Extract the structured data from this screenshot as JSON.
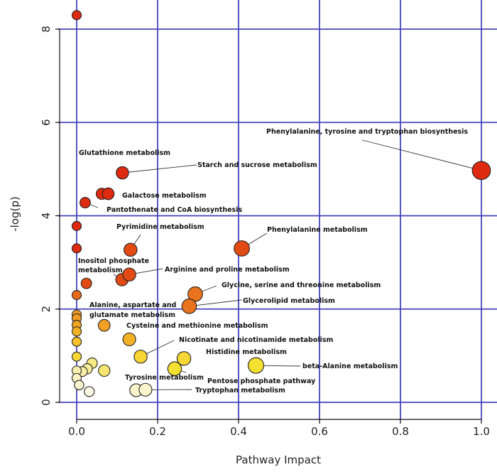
{
  "chart_data": {
    "type": "scatter",
    "xlabel": "Pathway Impact",
    "ylabel": "-log(p)",
    "xlim": [
      -0.04,
      1.04
    ],
    "ylim": [
      -0.3,
      8.5
    ],
    "x_ticks": [
      0.0,
      0.2,
      0.4,
      0.6,
      0.8,
      1.0
    ],
    "x_tick_labels": [
      "0.0",
      "0.2",
      "0.4",
      "0.6",
      "0.8",
      "1.0"
    ],
    "y_ticks": [
      0,
      2,
      4,
      6,
      8
    ],
    "y_tick_labels": [
      "0",
      "2",
      "4",
      "6",
      "8"
    ],
    "grid": true,
    "grid_color": "#4444bb",
    "point_outline_color": "#222222",
    "points": [
      {
        "x": 0.0,
        "y": 8.3,
        "color": "#dd2a10",
        "size": 0.3
      },
      {
        "x": 1.0,
        "y": 4.97,
        "color": "#dd2a10",
        "size": 1.0,
        "label": "Phenylalanine, tyrosine and tryptophan biosynthesis"
      },
      {
        "x": 0.113,
        "y": 4.92,
        "color": "#dd2a10",
        "size": 0.55,
        "label": "Starch and sucrose metabolism"
      },
      {
        "x": 0.062,
        "y": 4.47,
        "color": "#dd2a10",
        "size": 0.45,
        "label": "Glutathione metabolism"
      },
      {
        "x": 0.078,
        "y": 4.47,
        "color": "#dd2a10",
        "size": 0.5,
        "label": "Galactose metabolism"
      },
      {
        "x": 0.021,
        "y": 4.28,
        "color": "#dd2a10",
        "size": 0.4,
        "label": "Pantothenate and CoA biosynthesis"
      },
      {
        "x": 0.0,
        "y": 3.78,
        "color": "#dd2a10",
        "size": 0.3
      },
      {
        "x": 0.0,
        "y": 3.3,
        "color": "#dd2a10",
        "size": 0.3
      },
      {
        "x": 0.133,
        "y": 3.27,
        "color": "#e24a14",
        "size": 0.6,
        "label": "Pyrimidine metabolism"
      },
      {
        "x": 0.408,
        "y": 3.3,
        "color": "#e24a14",
        "size": 0.78,
        "label": "Phenylalanine metabolism"
      },
      {
        "x": 0.112,
        "y": 2.63,
        "color": "#e24a14",
        "size": 0.55,
        "label": "Inositol phosphate metabolism"
      },
      {
        "x": 0.13,
        "y": 2.74,
        "color": "#e24a14",
        "size": 0.6,
        "label": "Arginine and proline metabolism"
      },
      {
        "x": 0.024,
        "y": 2.55,
        "color": "#e24a14",
        "size": 0.4
      },
      {
        "x": 0.0,
        "y": 2.3,
        "color": "#e66a18",
        "size": 0.3
      },
      {
        "x": 0.293,
        "y": 2.32,
        "color": "#e8731c",
        "size": 0.72,
        "label": "Glycine, serine and threonine metabolism"
      },
      {
        "x": 0.278,
        "y": 2.06,
        "color": "#e8731c",
        "size": 0.72,
        "label": "Glycerolipid metabolism"
      },
      {
        "x": 0.0,
        "y": 1.88,
        "color": "#f09b24",
        "size": 0.3
      },
      {
        "x": 0.0,
        "y": 1.8,
        "color": "#f09b24",
        "size": 0.3
      },
      {
        "x": 0.0,
        "y": 1.66,
        "color": "#f0a624",
        "size": 0.3
      },
      {
        "x": 0.068,
        "y": 1.65,
        "color": "#f0a024",
        "size": 0.5,
        "label": "Alanine, aspartate and glutamate metabolism"
      },
      {
        "x": 0.0,
        "y": 1.52,
        "color": "#f2b228",
        "size": 0.3
      },
      {
        "x": 0.0,
        "y": 1.3,
        "color": "#f4c02c",
        "size": 0.3
      },
      {
        "x": 0.13,
        "y": 1.35,
        "color": "#f2b228",
        "size": 0.58,
        "label": "Cysteine and methionine metabolism"
      },
      {
        "x": 0.0,
        "y": 0.98,
        "color": "#f6d734",
        "size": 0.3
      },
      {
        "x": 0.158,
        "y": 0.98,
        "color": "#f6d734",
        "size": 0.6,
        "label": "Nicotinate and nicotinamide metabolism"
      },
      {
        "x": 0.265,
        "y": 0.94,
        "color": "#f6d734",
        "size": 0.65,
        "label": "Histidine metabolism"
      },
      {
        "x": 0.443,
        "y": 0.79,
        "color": "#f4e030",
        "size": 0.8,
        "label": "beta-Alanine metabolism"
      },
      {
        "x": 0.242,
        "y": 0.72,
        "color": "#f4e030",
        "size": 0.65,
        "label": "Pentose phosphate pathway"
      },
      {
        "x": 0.068,
        "y": 0.68,
        "color": "#f6e670",
        "size": 0.48
      },
      {
        "x": 0.038,
        "y": 0.84,
        "color": "#f6ea80",
        "size": 0.4
      },
      {
        "x": 0.026,
        "y": 0.72,
        "color": "#f8ee9a",
        "size": 0.38
      },
      {
        "x": 0.014,
        "y": 0.66,
        "color": "#f8eea4",
        "size": 0.36
      },
      {
        "x": 0.0,
        "y": 0.68,
        "color": "#f8f0b0",
        "size": 0.3
      },
      {
        "x": 0.0,
        "y": 0.52,
        "color": "#fbf3c4",
        "size": 0.3
      },
      {
        "x": 0.006,
        "y": 0.37,
        "color": "#fbf4d0",
        "size": 0.32
      },
      {
        "x": 0.031,
        "y": 0.23,
        "color": "#fcf8e6",
        "size": 0.36
      },
      {
        "x": 0.147,
        "y": 0.26,
        "color": "#fbf3cc",
        "size": 0.58,
        "label": "Tyrosine metabolism"
      },
      {
        "x": 0.17,
        "y": 0.27,
        "color": "#fbf3cc",
        "size": 0.58,
        "label": "Tryptophan metabolism"
      }
    ]
  }
}
